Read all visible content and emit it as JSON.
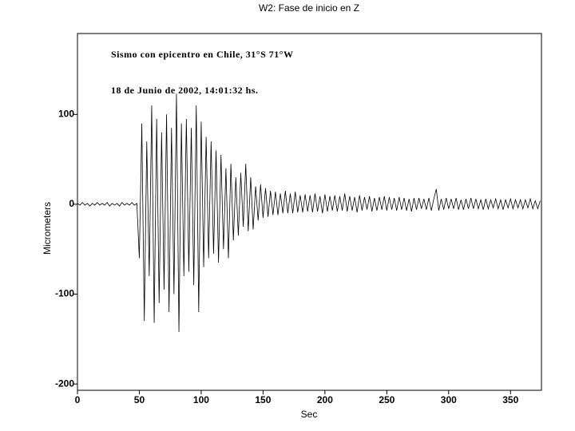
{
  "chart_data": {
    "type": "line",
    "title": "W2: Fase de inicio en Z",
    "annotations": [
      "Sismo con epicentro en Chile, 31°S 71°W",
      "18 de Junio de 2002, 14:01:32 hs."
    ],
    "xlabel": "Sec",
    "ylabel": "Micrometers",
    "xlim": [
      0,
      375
    ],
    "ylim": [
      -207,
      190
    ],
    "xticks": [
      0,
      50,
      100,
      150,
      200,
      250,
      300,
      350
    ],
    "yticks": [
      -200,
      -100,
      0,
      100
    ],
    "x": [
      0,
      2,
      4,
      6,
      8,
      10,
      12,
      14,
      16,
      18,
      20,
      22,
      24,
      26,
      28,
      30,
      32,
      34,
      36,
      38,
      40,
      42,
      44,
      46,
      48,
      50,
      52,
      54,
      56,
      58,
      60,
      62,
      64,
      66,
      68,
      70,
      72,
      74,
      76,
      78,
      80,
      82,
      84,
      86,
      88,
      90,
      92,
      94,
      96,
      98,
      100,
      102,
      104,
      106,
      108,
      110,
      112,
      114,
      116,
      118,
      120,
      122,
      124,
      126,
      128,
      130,
      132,
      134,
      136,
      138,
      140,
      142,
      144,
      146,
      148,
      150,
      152,
      154,
      156,
      158,
      160,
      162,
      164,
      166,
      168,
      170,
      172,
      174,
      176,
      178,
      180,
      182,
      184,
      186,
      188,
      190,
      192,
      194,
      196,
      198,
      200,
      202,
      204,
      206,
      208,
      210,
      212,
      214,
      216,
      218,
      220,
      222,
      224,
      226,
      228,
      230,
      232,
      234,
      236,
      238,
      240,
      242,
      244,
      246,
      248,
      250,
      252,
      254,
      256,
      258,
      260,
      262,
      264,
      266,
      268,
      270,
      272,
      274,
      276,
      278,
      280,
      282,
      284,
      286,
      288,
      290,
      292,
      294,
      296,
      298,
      300,
      302,
      304,
      306,
      308,
      310,
      312,
      314,
      316,
      318,
      320,
      322,
      324,
      326,
      328,
      330,
      332,
      334,
      336,
      338,
      340,
      342,
      344,
      346,
      348,
      350,
      352,
      354,
      356,
      358,
      360,
      362,
      364,
      366,
      368,
      370,
      372,
      374
    ],
    "series": [
      {
        "color": "#000000",
        "values": [
          1,
          -1,
          2,
          -1,
          1,
          -2,
          1,
          -1,
          2,
          -1,
          1,
          -1,
          2,
          -2,
          1,
          -1,
          1,
          -2,
          2,
          -1,
          1,
          -1,
          2,
          -1,
          1,
          -60,
          90,
          -130,
          70,
          -80,
          110,
          -132,
          95,
          -110,
          80,
          -95,
          100,
          -120,
          85,
          -100,
          123,
          -142,
          90,
          -80,
          95,
          -75,
          85,
          -90,
          110,
          -120,
          92,
          -70,
          75,
          -60,
          70,
          -55,
          60,
          -65,
          55,
          -50,
          40,
          -60,
          45,
          -40,
          30,
          -35,
          35,
          -25,
          45,
          -30,
          30,
          -28,
          20,
          -18,
          22,
          -15,
          18,
          -14,
          15,
          -12,
          14,
          -12,
          12,
          -10,
          15,
          -10,
          12,
          -10,
          14,
          -9,
          10,
          -9,
          11,
          -8,
          10,
          -9,
          12,
          -8,
          9,
          -10,
          11,
          -8,
          9,
          -7,
          10,
          -8,
          9,
          -7,
          12,
          -8,
          9,
          -7,
          8,
          -9,
          10,
          -7,
          8,
          -6,
          9,
          -8,
          7,
          -7,
          8,
          -6,
          9,
          -7,
          8,
          -6,
          7,
          -7,
          8,
          -6,
          7,
          -7,
          6,
          -8,
          7,
          -6,
          7,
          -5,
          6,
          -6,
          7,
          -7,
          6,
          17,
          -7,
          6,
          -6,
          7,
          -5,
          6,
          -5,
          7,
          -6,
          5,
          -6,
          6,
          -5,
          7,
          -5,
          6,
          -5,
          5,
          -6,
          6,
          -5,
          5,
          -4,
          6,
          -5,
          5,
          -6,
          5,
          -4,
          6,
          -5,
          5,
          -4,
          5,
          -5,
          5,
          -4,
          6,
          -5,
          4,
          -5,
          4
        ]
      }
    ]
  }
}
